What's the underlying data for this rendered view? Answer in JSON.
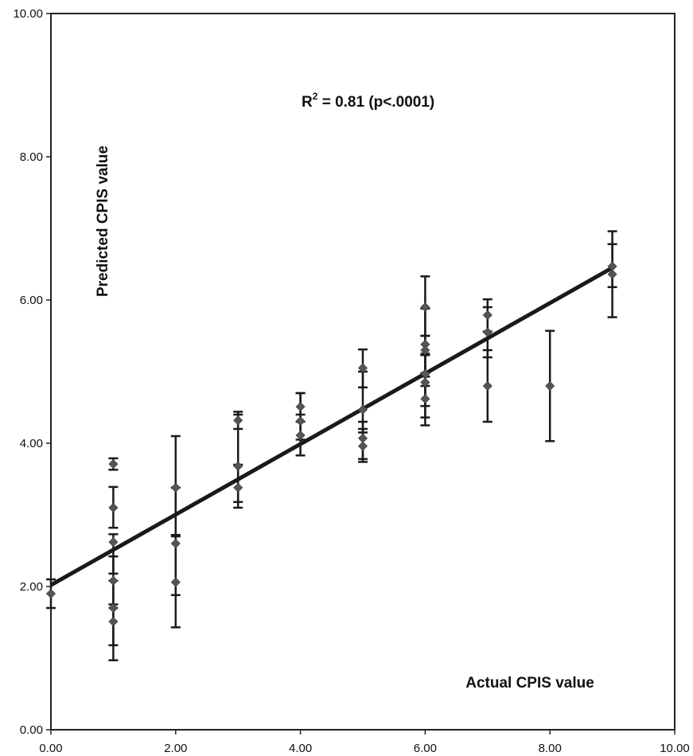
{
  "chart_data": {
    "type": "scatter",
    "title": "",
    "xlabel": "Actual CPIS value",
    "ylabel": "Predicted CPIS value",
    "xlim": [
      0,
      10
    ],
    "ylim": [
      0,
      10
    ],
    "x_ticks": [
      "0.00",
      "2.00",
      "4.00",
      "6.00",
      "8.00",
      "10.00"
    ],
    "y_ticks": [
      "0.00",
      "2.00",
      "4.00",
      "6.00",
      "8.00",
      "10.00"
    ],
    "grid": false,
    "annotation": {
      "base": "R",
      "superscript": "2",
      "rest": " = 0.81 (p<.0001)"
    },
    "marker_color": "#555555",
    "line_color": "#1a1a1a",
    "regression_line": {
      "x": [
        0,
        9
      ],
      "y": [
        2.02,
        6.45
      ]
    },
    "points": [
      {
        "x": 0,
        "y": 1.9,
        "lo": 1.7,
        "hi": 2.1
      },
      {
        "x": 1,
        "y": 3.71,
        "lo": 3.63,
        "hi": 3.79
      },
      {
        "x": 1,
        "y": 3.1,
        "lo": 2.82,
        "hi": 3.39
      },
      {
        "x": 1,
        "y": 2.62,
        "lo": 2.18,
        "hi": 2.73
      },
      {
        "x": 1,
        "y": 2.08,
        "lo": 1.7,
        "hi": 2.42
      },
      {
        "x": 1,
        "y": 1.7,
        "lo": 1.18,
        "hi": 2.08
      },
      {
        "x": 1,
        "y": 1.51,
        "lo": 0.97,
        "hi": 1.75
      },
      {
        "x": 2,
        "y": 3.38,
        "lo": 2.72,
        "hi": 4.1
      },
      {
        "x": 2,
        "y": 2.6,
        "lo": 1.88,
        "hi": 3.38
      },
      {
        "x": 2,
        "y": 2.06,
        "lo": 1.43,
        "hi": 2.7
      },
      {
        "x": 3,
        "y": 4.32,
        "lo": 4.2,
        "hi": 4.44
      },
      {
        "x": 3,
        "y": 3.68,
        "lo": 3.18,
        "hi": 4.4
      },
      {
        "x": 3,
        "y": 3.38,
        "lo": 3.1,
        "hi": 3.7
      },
      {
        "x": 4,
        "y": 4.51,
        "lo": 4.3,
        "hi": 4.7
      },
      {
        "x": 4,
        "y": 4.31,
        "lo": 4.05,
        "hi": 4.7
      },
      {
        "x": 4,
        "y": 4.11,
        "lo": 3.83,
        "hi": 4.4
      },
      {
        "x": 5,
        "y": 5.05,
        "lo": 4.78,
        "hi": 5.31
      },
      {
        "x": 5,
        "y": 4.47,
        "lo": 4.15,
        "hi": 5.0
      },
      {
        "x": 5,
        "y": 4.07,
        "lo": 3.78,
        "hi": 4.3
      },
      {
        "x": 5,
        "y": 3.96,
        "lo": 3.74,
        "hi": 4.2
      },
      {
        "x": 6,
        "y": 5.9,
        "lo": 5.5,
        "hi": 6.33
      },
      {
        "x": 6,
        "y": 5.38,
        "lo": 4.93,
        "hi": 5.88
      },
      {
        "x": 6,
        "y": 5.3,
        "lo": 4.8,
        "hi": 5.5
      },
      {
        "x": 6,
        "y": 4.97,
        "lo": 4.52,
        "hi": 5.25
      },
      {
        "x": 6,
        "y": 4.85,
        "lo": 4.36,
        "hi": 5.23
      },
      {
        "x": 6,
        "y": 4.62,
        "lo": 4.25,
        "hi": 4.98
      },
      {
        "x": 7,
        "y": 5.79,
        "lo": 5.56,
        "hi": 6.01
      },
      {
        "x": 7,
        "y": 5.55,
        "lo": 5.2,
        "hi": 5.9
      },
      {
        "x": 7,
        "y": 4.8,
        "lo": 4.3,
        "hi": 5.3
      },
      {
        "x": 8,
        "y": 4.8,
        "lo": 4.03,
        "hi": 5.57
      },
      {
        "x": 9,
        "y": 6.47,
        "lo": 6.18,
        "hi": 6.96
      },
      {
        "x": 9,
        "y": 6.36,
        "lo": 5.76,
        "hi": 6.78
      }
    ]
  }
}
